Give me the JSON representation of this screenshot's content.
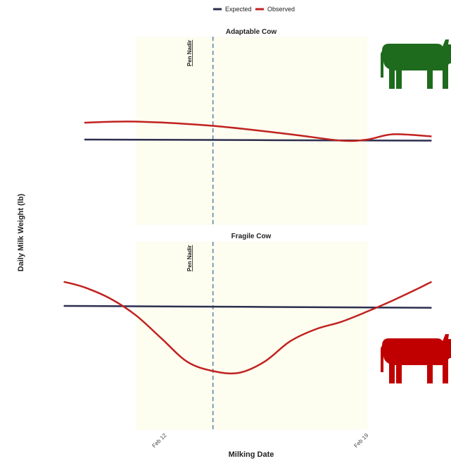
{
  "legend": {
    "entries": [
      {
        "label": "Expected",
        "color": "#2b2f4f"
      },
      {
        "label": "Observed",
        "color": "#c0221f"
      }
    ]
  },
  "axes": {
    "xlabel": "Milking Date",
    "ylabel": "Daily Milk Weight (lb)",
    "x_ticks": [
      "Feb 12",
      "Feb 19"
    ]
  },
  "reference_line": {
    "label": "Pen Nadir",
    "x": 13,
    "color": "#5a7fa8"
  },
  "shaded_band_color": "#fdfdf0",
  "chart_data": [
    {
      "type": "line",
      "title": "Adaptable Cow",
      "icon": "cow-icon",
      "icon_color": "#1e6b1e",
      "x_unit": "day of February",
      "xlim": [
        7.2,
        21.5
      ],
      "shaded_x": [
        10,
        19
      ],
      "ylim": [
        -1,
        1
      ],
      "series": [
        {
          "name": "Expected",
          "x": [
            8,
            21.5
          ],
          "y": [
            0.0,
            -0.01
          ]
        },
        {
          "name": "Observed",
          "x": [
            8,
            10,
            13,
            16,
            18,
            19,
            20,
            21.5
          ],
          "y": [
            0.16,
            0.17,
            0.13,
            0.05,
            -0.01,
            0.0,
            0.05,
            0.03
          ]
        }
      ]
    },
    {
      "type": "line",
      "title": "Fragile Cow",
      "icon": "cow-icon",
      "icon_color": "#c00000",
      "x_unit": "day of February",
      "xlim": [
        7.2,
        21.5
      ],
      "shaded_x": [
        10,
        19
      ],
      "ylim": [
        -1,
        1
      ],
      "series": [
        {
          "name": "Expected",
          "x": [
            7.2,
            21.5
          ],
          "y": [
            0.0,
            -0.02
          ]
        },
        {
          "name": "Observed",
          "x": [
            7.2,
            8,
            9,
            10,
            11,
            12,
            13,
            14,
            15,
            16,
            17,
            18,
            19,
            20,
            21,
            21.5
          ],
          "y": [
            0.26,
            0.2,
            0.08,
            -0.1,
            -0.35,
            -0.6,
            -0.7,
            -0.72,
            -0.6,
            -0.38,
            -0.25,
            -0.17,
            -0.06,
            0.06,
            0.19,
            0.26
          ]
        }
      ]
    }
  ]
}
